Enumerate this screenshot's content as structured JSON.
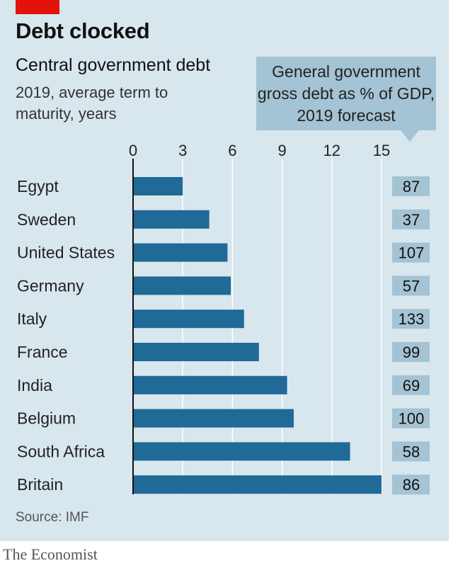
{
  "title": "Debt clocked",
  "subtitle": "Central government debt",
  "subtitle2": "2019, average term to maturity, years",
  "callout": "General government gross debt as % of GDP, 2019 forecast",
  "source": "Source: IMF",
  "brand": "The Economist",
  "colors": {
    "bar": "#1f6a96",
    "background": "#d8e6ee",
    "callout": "#a4c3d4",
    "accent": "#e3120b"
  },
  "chart_data": {
    "type": "bar",
    "orientation": "horizontal",
    "categories": [
      "Egypt",
      "Sweden",
      "United States",
      "Germany",
      "Italy",
      "France",
      "India",
      "Belgium",
      "South Africa",
      "Britain"
    ],
    "values": [
      3.0,
      4.6,
      5.7,
      5.9,
      6.7,
      7.6,
      9.3,
      9.7,
      13.1,
      15.0
    ],
    "xlim": [
      0,
      15
    ],
    "xticks": [
      0,
      3,
      6,
      9,
      12,
      15
    ],
    "grid": true,
    "secondary_values": [
      87,
      37,
      107,
      57,
      133,
      99,
      69,
      100,
      58,
      86
    ]
  }
}
